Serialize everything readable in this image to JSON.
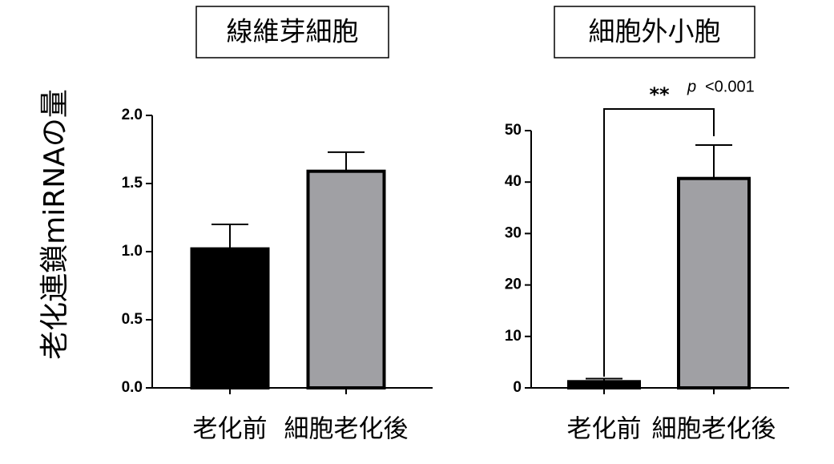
{
  "y_label": "老化連鎖miRNAの量",
  "chart_data": [
    {
      "type": "bar",
      "title": "線維芽細胞",
      "categories": [
        "老化前",
        "細胞老化後"
      ],
      "values": [
        1.02,
        1.59
      ],
      "errors": [
        0.18,
        0.14
      ],
      "colors": [
        "#000000",
        "#a0a0a4"
      ],
      "ylim": [
        0,
        2
      ],
      "yticks": [
        {
          "value": 0,
          "label": "0.0"
        },
        {
          "value": 0.5,
          "label": "0.5"
        },
        {
          "value": 1,
          "label": "1.0"
        },
        {
          "value": 1.5,
          "label": "1.5"
        },
        {
          "value": 2,
          "label": "2.0"
        }
      ]
    },
    {
      "type": "bar",
      "title": "細胞外小胞",
      "categories": [
        "老化前",
        "細胞老化後"
      ],
      "values": [
        1.2,
        40.7
      ],
      "errors": [
        0.6,
        6.5
      ],
      "colors": [
        "#000000",
        "#a0a0a4"
      ],
      "ylim": [
        0,
        50
      ],
      "yticks": [
        0,
        10,
        20,
        30,
        40,
        50
      ],
      "significance": "**",
      "p_symbol": "p",
      "p_value": "<0.001"
    }
  ]
}
